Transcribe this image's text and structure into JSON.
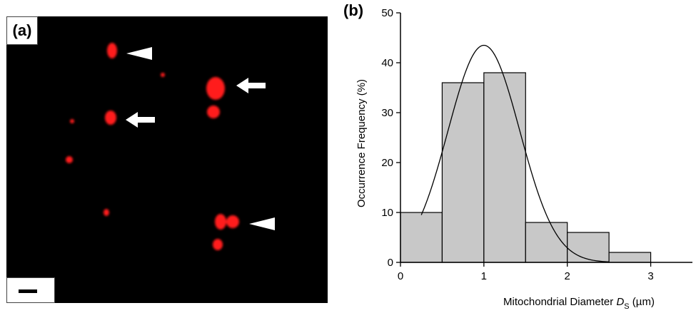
{
  "panel_a": {
    "label": "(a)",
    "markers": [
      {
        "kind": "arrowhead-icon"
      },
      {
        "kind": "arrow-icon"
      },
      {
        "kind": "arrow-icon"
      },
      {
        "kind": "arrowhead-icon"
      }
    ],
    "colors": {
      "background": "#000000",
      "mitochondria": "#ff1a1a"
    }
  },
  "panel_b": {
    "label": "(b)"
  },
  "chart_data": {
    "type": "bar",
    "bin_edges": [
      0,
      0.5,
      1.0,
      1.5,
      2.0,
      2.5,
      3.0
    ],
    "values": [
      10,
      36,
      38,
      8,
      6,
      2
    ],
    "xlabel_prefix": "Mitochondrial Diameter ",
    "xlabel_symbol": "D",
    "xlabel_subscript": "S",
    "xlabel_unit": " (µm)",
    "ylabel": "Occurrence Frequency (%)",
    "xlim": [
      0,
      3.5
    ],
    "ylim": [
      0,
      50
    ],
    "x_ticks": [
      0,
      1,
      2,
      3
    ],
    "y_ticks": [
      0,
      10,
      20,
      30,
      40,
      50
    ],
    "fit_curve": {
      "type": "gaussian",
      "mean": 1.0,
      "sigma": 0.43,
      "peak": 43.5,
      "x_range": [
        0.25,
        2.5
      ]
    },
    "grid": false,
    "colors": {
      "bar_fill": "#c8c8c8",
      "bar_stroke": "#000000",
      "curve": "#000000"
    }
  }
}
